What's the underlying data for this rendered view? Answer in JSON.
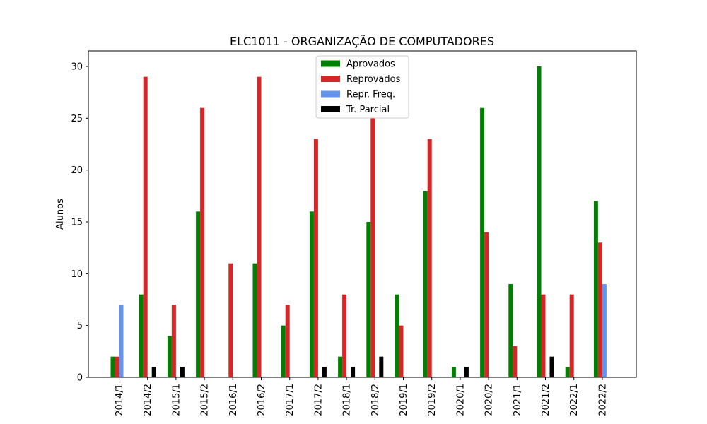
{
  "chart_data": {
    "type": "bar",
    "title": "ELC1011 - ORGANIZAÇÃO DE COMPUTADORES",
    "xlabel": "",
    "ylabel": "Alunos",
    "ylim": [
      0,
      31.5
    ],
    "yticks": [
      0,
      5,
      10,
      15,
      20,
      25,
      30
    ],
    "grid": false,
    "legend_position": "top-center",
    "categories": [
      "2014/1",
      "2014/2",
      "2015/1",
      "2015/2",
      "2016/1",
      "2016/2",
      "2017/1",
      "2017/2",
      "2018/1",
      "2018/2",
      "2019/1",
      "2019/2",
      "2020/1",
      "2020/2",
      "2021/1",
      "2021/2",
      "2022/1",
      "2022/2"
    ],
    "series": [
      {
        "name": "Aprovados",
        "color": "#008000",
        "values": [
          2,
          8,
          4,
          16,
          0,
          11,
          5,
          16,
          2,
          15,
          8,
          18,
          1,
          26,
          9,
          30,
          1,
          17
        ]
      },
      {
        "name": "Reprovados",
        "color": "#d62728",
        "values": [
          2,
          29,
          7,
          26,
          11,
          29,
          7,
          23,
          8,
          25,
          5,
          23,
          0,
          14,
          3,
          8,
          8,
          13
        ]
      },
      {
        "name": "Repr. Freq.",
        "color": "#6495ed",
        "values": [
          7,
          0,
          0,
          0,
          0,
          0,
          0,
          0,
          0,
          0,
          0,
          0,
          0,
          0,
          0,
          0,
          0,
          9
        ]
      },
      {
        "name": "Tr. Parcial",
        "color": "#000000",
        "values": [
          0,
          1,
          1,
          0,
          0,
          0,
          0,
          1,
          1,
          2,
          0,
          0,
          1,
          0,
          0,
          2,
          0,
          0
        ]
      }
    ]
  }
}
